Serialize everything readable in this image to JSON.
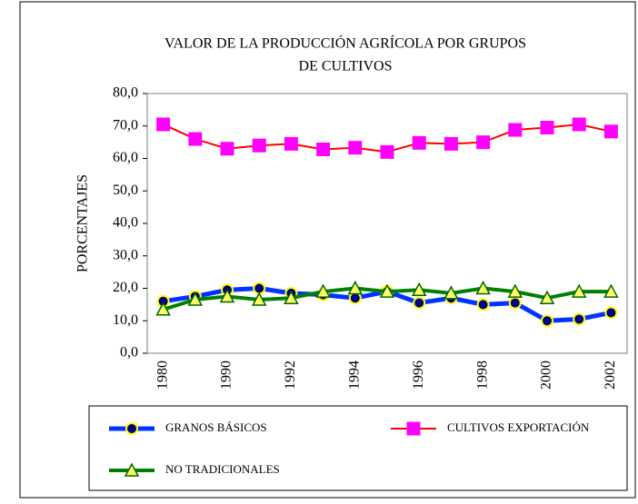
{
  "chart_data": {
    "type": "line",
    "title": "VALOR DE LA PRODUCCIÓN AGRÍCOLA POR GRUPOS",
    "subtitle": "DE CULTIVOS",
    "y_label": "PORCENTAJES",
    "categories": [
      "1980",
      null,
      "1990",
      null,
      "1992",
      null,
      "1994",
      null,
      "1996",
      null,
      "1998",
      null,
      "2000",
      null,
      "2002"
    ],
    "series": [
      {
        "name": "GRANOS BÁSICOS",
        "color": "#0033ff",
        "marker": "circle",
        "values": [
          16,
          17.5,
          19.5,
          20,
          18.5,
          18,
          17,
          19,
          15.5,
          17,
          15,
          15.5,
          10,
          10.5,
          12.5
        ]
      },
      {
        "name": "CULTIVOS EXPORTACIÓN",
        "color": "#ff0000",
        "marker": "square",
        "values": [
          70.5,
          66,
          63,
          64,
          64.5,
          62.8,
          63.3,
          62,
          64.8,
          64.5,
          65,
          68.8,
          69.5,
          70.5,
          68.3
        ]
      },
      {
        "name": "NO TRADICIONALES",
        "color": "#008000",
        "marker": "triangle",
        "values": [
          13.5,
          16.5,
          17.5,
          16.5,
          17,
          19,
          20,
          19,
          19.5,
          18.5,
          20,
          19,
          17,
          19,
          19
        ]
      }
    ],
    "ylim": [
      0,
      80
    ],
    "yticks": [
      {
        "value": 0,
        "label": "0,0"
      },
      {
        "value": 10,
        "label": "10,0"
      },
      {
        "value": 20,
        "label": "20,0"
      },
      {
        "value": 30,
        "label": "30,0"
      },
      {
        "value": 40,
        "label": "40,0"
      },
      {
        "value": 50,
        "label": "50,0"
      },
      {
        "value": 60,
        "label": "60,0"
      },
      {
        "value": 70,
        "label": "70,0"
      },
      {
        "value": 80,
        "label": "80,0"
      }
    ],
    "grid": false,
    "legend": "bottom"
  }
}
